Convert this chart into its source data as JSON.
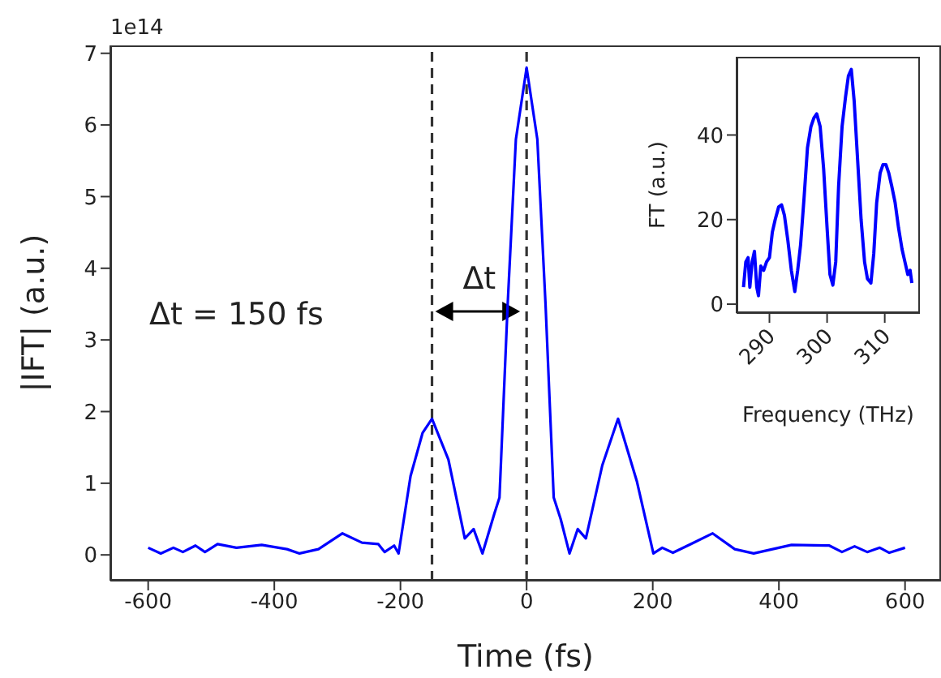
{
  "chart_data": [
    {
      "type": "line",
      "xlabel": "Time (fs)",
      "ylabel": "|IFT| (a.u.)",
      "xlim": [
        -660,
        657
      ],
      "ylim": [
        -0.36,
        7.11
      ],
      "xticks": [
        -600,
        -400,
        -200,
        0,
        200,
        400,
        600
      ],
      "yticks": [
        0,
        1,
        2,
        3,
        4,
        5,
        6,
        7
      ],
      "marker": "none",
      "line_style": "solid",
      "x": [
        -600,
        -580,
        -560,
        -545,
        -525,
        -510,
        -490,
        -460,
        -420,
        -380,
        -360,
        -330,
        -292,
        -261,
        -235,
        -225,
        -210,
        -203,
        -184,
        -165,
        -150,
        -124,
        -98,
        -84,
        -70,
        -51,
        -43,
        -30,
        -17,
        0,
        17,
        30,
        43,
        54,
        68,
        81,
        94,
        120,
        145,
        175,
        201,
        215,
        232,
        260,
        295,
        330,
        360,
        420,
        480,
        500,
        520,
        540,
        560,
        575,
        600
      ],
      "series": [
        {
          "color": "#0000ff",
          "values": [
            0.1,
            0.02,
            0.1,
            0.04,
            0.13,
            0.04,
            0.15,
            0.1,
            0.14,
            0.08,
            0.02,
            0.08,
            0.3,
            0.17,
            0.15,
            0.04,
            0.13,
            0.02,
            1.1,
            1.7,
            1.9,
            1.33,
            0.23,
            0.36,
            0.02,
            0.58,
            0.8,
            3.5,
            5.8,
            6.8,
            5.8,
            3.5,
            0.8,
            0.5,
            0.02,
            0.36,
            0.23,
            1.25,
            1.9,
            1.02,
            0.02,
            0.1,
            0.03,
            0.15,
            0.3,
            0.08,
            0.02,
            0.14,
            0.13,
            0.04,
            0.12,
            0.04,
            0.1,
            0.03,
            0.1
          ]
        }
      ],
      "ref_lines": [
        {
          "axis": "x",
          "value": -150,
          "color": "#333333",
          "line_style": "dashed"
        },
        {
          "axis": "x",
          "value": 0,
          "color": "#333333",
          "line_style": "dashed"
        }
      ],
      "annotations": [
        "1e14",
        "Δt = 150 fs",
        "Δt"
      ]
    },
    {
      "type": "line",
      "xlabel": "Frequency (THz)",
      "ylabel": "FT (a.u.)",
      "xlim": [
        284.3,
        316.1
      ],
      "ylim": [
        -2.1,
        58.5
      ],
      "xticks": [
        290,
        300,
        310
      ],
      "yticks": [
        0,
        20,
        40
      ],
      "marker": "none",
      "line_style": "solid",
      "x": [
        285.5,
        285.9,
        286.3,
        286.6,
        287.0,
        287.4,
        287.8,
        288.1,
        288.5,
        289.0,
        289.5,
        290.0,
        290.5,
        291.0,
        291.6,
        292.1,
        292.6,
        293.2,
        293.8,
        294.4,
        294.9,
        295.4,
        296.0,
        296.6,
        297.2,
        297.7,
        298.2,
        298.8,
        299.4,
        300.0,
        300.5,
        301.0,
        301.5,
        302.0,
        302.6,
        303.2,
        303.7,
        304.2,
        304.7,
        305.3,
        305.9,
        306.5,
        307.0,
        307.6,
        308.1,
        308.6,
        309.2,
        309.7,
        310.2,
        310.7,
        311.2,
        311.8,
        312.4,
        313.0,
        313.5,
        314.0,
        314.4,
        314.7
      ],
      "series": [
        {
          "color": "#0000ff",
          "values": [
            4,
            10,
            11,
            4,
            10,
            12.5,
            4,
            2,
            9,
            8,
            10,
            11,
            17,
            20,
            23,
            23.5,
            21,
            15,
            8,
            3,
            8,
            14,
            25,
            37,
            42,
            44,
            45,
            42,
            32,
            18,
            7,
            4.5,
            10,
            28,
            42,
            49,
            54,
            55.5,
            48,
            34,
            20,
            10,
            6,
            5,
            12,
            24,
            31,
            33,
            33,
            31,
            28,
            24,
            18,
            13,
            10,
            7,
            8,
            5
          ]
        }
      ]
    }
  ]
}
